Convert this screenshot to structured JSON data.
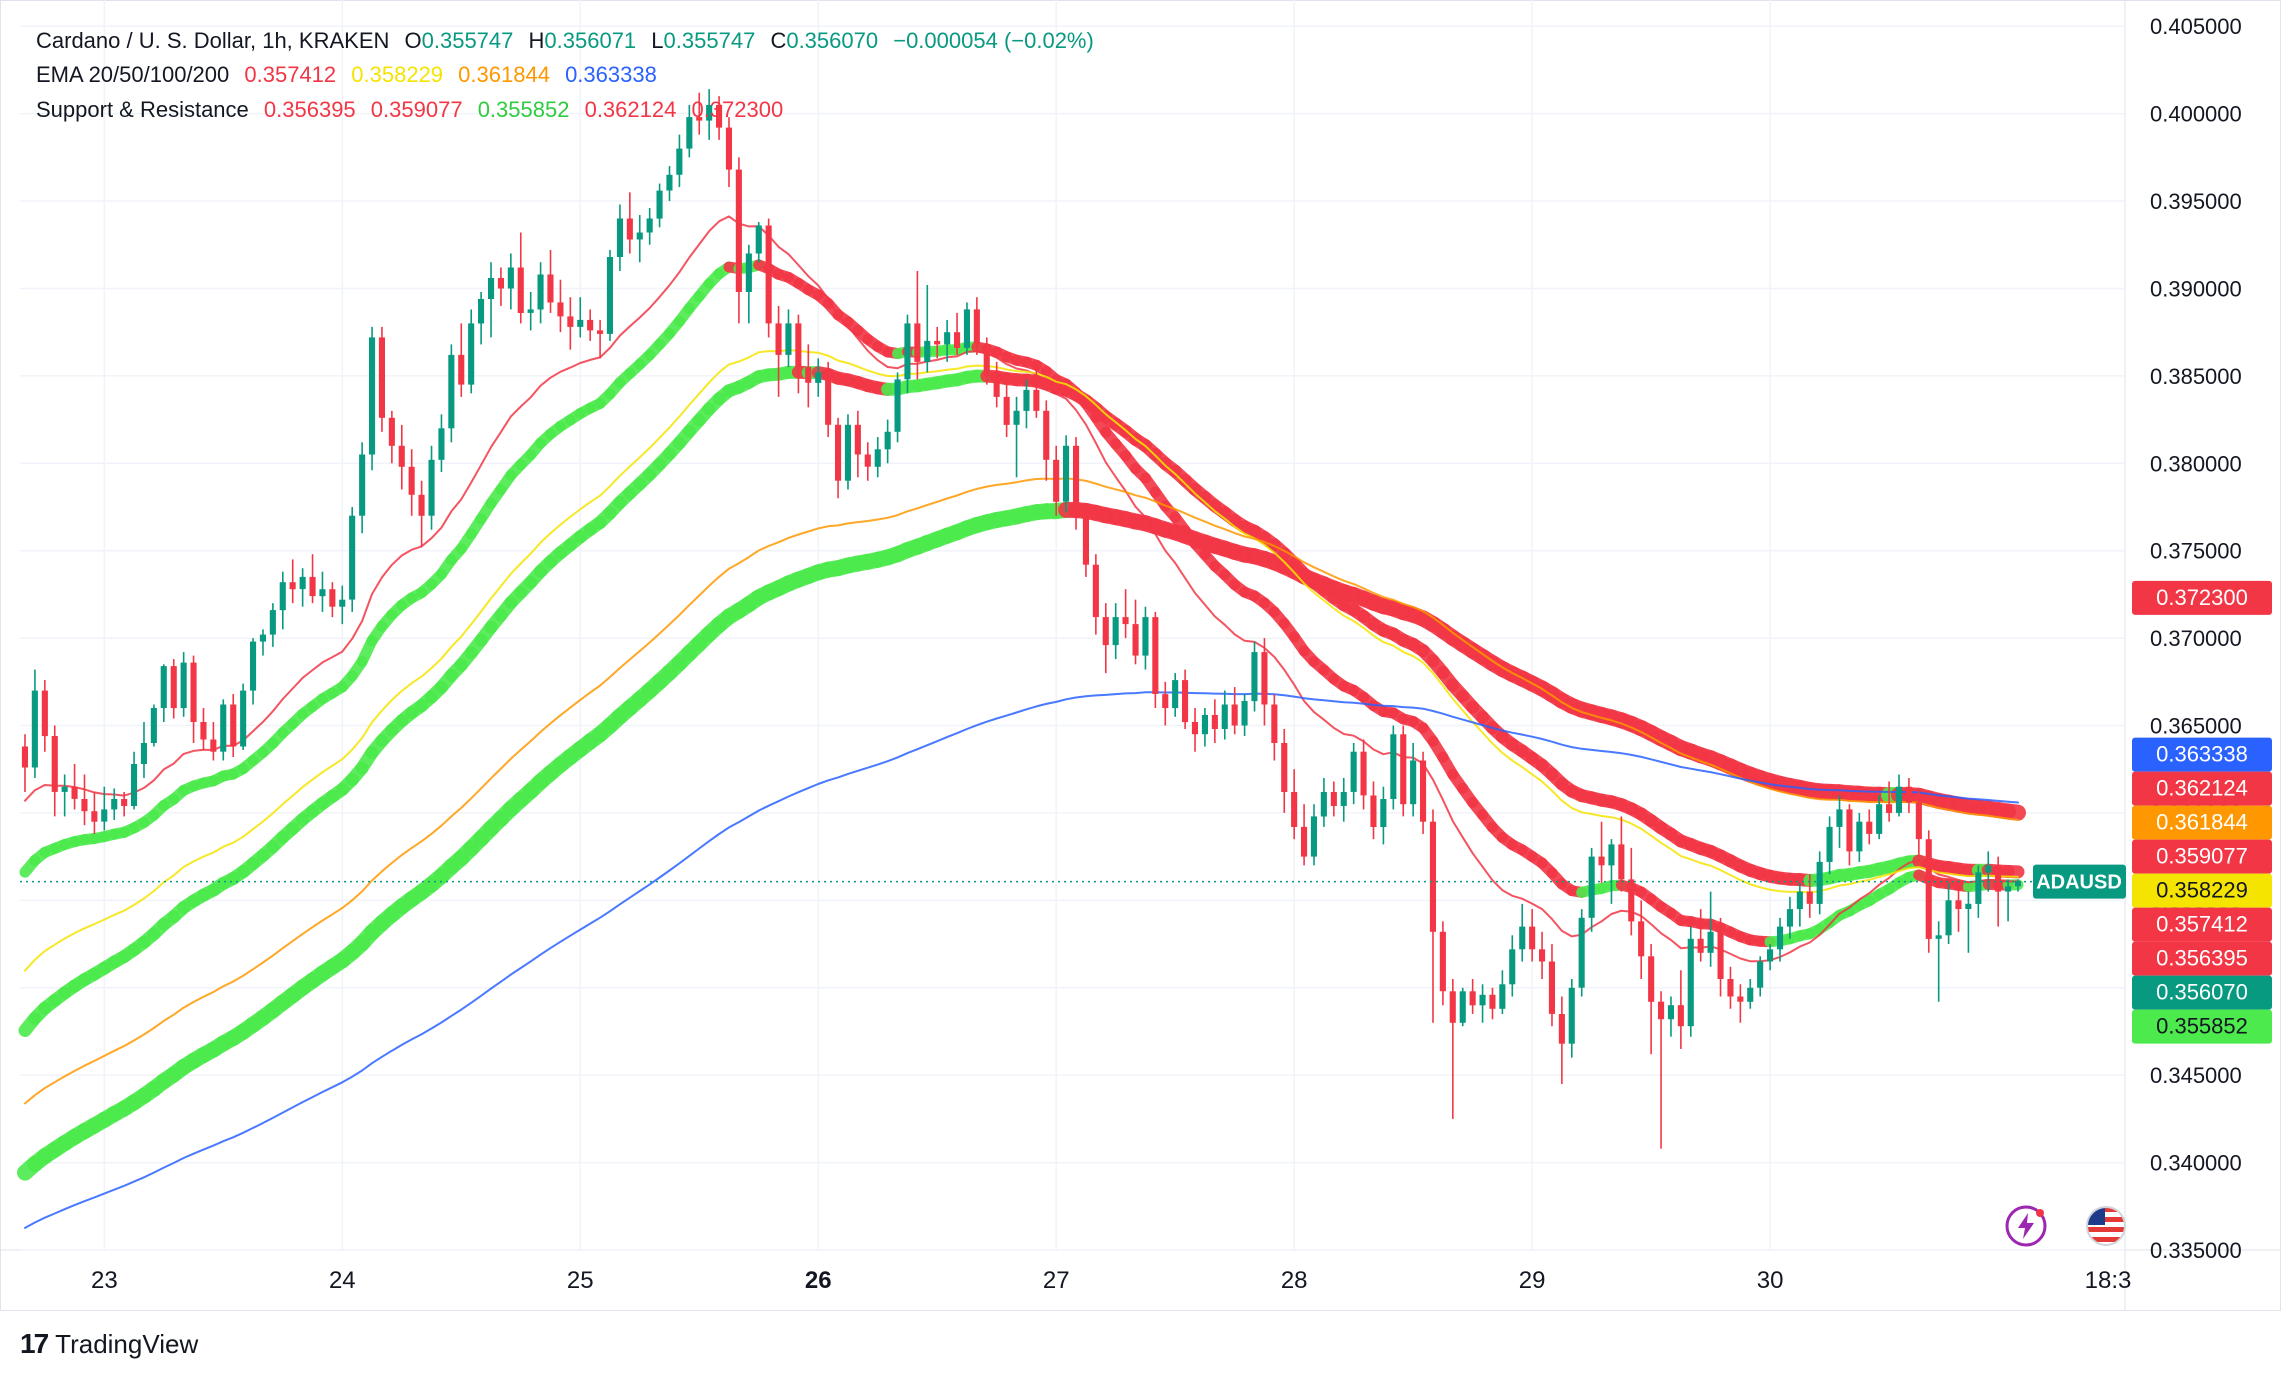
{
  "header": {
    "symbol": "Cardano / U. S. Dollar, 1h, KRAKEN",
    "o_label": "O",
    "o_value": "0.355747",
    "h_label": "H",
    "h_value": "0.356071",
    "l_label": "L",
    "l_value": "0.355747",
    "c_label": "C",
    "c_value": "0.356070",
    "change": "−0.000054 (−0.02%)",
    "ohlc_color": "#089981"
  },
  "ema_legend": {
    "label": "EMA 20/50/100/200",
    "values": [
      {
        "text": "0.357412",
        "color": "#f23645"
      },
      {
        "text": "0.358229",
        "color": "#f5e400"
      },
      {
        "text": "0.361844",
        "color": "#ff9800"
      },
      {
        "text": "0.363338",
        "color": "#2962ff"
      }
    ]
  },
  "sr_legend": {
    "label": "Support & Resistance",
    "values": [
      {
        "text": "0.356395",
        "color": "#f23645"
      },
      {
        "text": "0.359077",
        "color": "#f23645"
      },
      {
        "text": "0.355852",
        "color": "#2ecc40"
      },
      {
        "text": "0.362124",
        "color": "#f23645"
      },
      {
        "text": "0.372300",
        "color": "#f23645"
      }
    ]
  },
  "branding": {
    "name": "TradingView"
  },
  "chart_data": {
    "type": "candlestick",
    "x_ticks": [
      "23",
      "24",
      "25",
      "26",
      "27",
      "28",
      "29",
      "30",
      "18:3"
    ],
    "bold_tick": "26",
    "ylim": [
      0.335,
      0.4065
    ],
    "y_ticks": [
      "0.405000",
      "0.400000",
      "0.395000",
      "0.390000",
      "0.385000",
      "0.380000",
      "0.375000",
      "0.370000",
      "0.365000",
      "0.360000",
      "0.355000",
      "0.350000",
      "0.345000",
      "0.340000",
      "0.335000"
    ],
    "last_price": 0.35607,
    "colors": {
      "up": "#089981",
      "down": "#f23645",
      "ema20": "#f23645",
      "ema50": "#f5e400",
      "ema100": "#ff9800",
      "ema200": "#2962ff",
      "support": "#4cea4c",
      "resistance": "#f23645"
    },
    "price_labels": [
      {
        "text": "0.372300",
        "value": 0.3723,
        "bg": "#f23645",
        "fg": "#ffffff"
      },
      {
        "text": "0.363338",
        "value": 0.363338,
        "bg": "#2962ff",
        "fg": "#ffffff"
      },
      {
        "text": "0.362124",
        "value": 0.362124,
        "bg": "#f23645",
        "fg": "#ffffff"
      },
      {
        "text": "0.361844",
        "value": 0.361844,
        "bg": "#ff9800",
        "fg": "#ffffff"
      },
      {
        "text": "0.359077",
        "value": 0.359077,
        "bg": "#f23645",
        "fg": "#ffffff"
      },
      {
        "text": "0.358229",
        "value": 0.358229,
        "bg": "#f5e400",
        "fg": "#131722"
      },
      {
        "text": "0.357412",
        "value": 0.357412,
        "bg": "#f23645",
        "fg": "#ffffff"
      },
      {
        "text": "0.356395",
        "value": 0.356395,
        "bg": "#f23645",
        "fg": "#ffffff"
      },
      {
        "text": "ADAUSD",
        "value": 0.35607,
        "bg": "#089981",
        "fg": "#ffffff",
        "symbol": true
      },
      {
        "text": "0.356070",
        "value": 0.35607,
        "bg": "#089981",
        "fg": "#ffffff"
      },
      {
        "text": "0.355852",
        "value": 0.355852,
        "bg": "#4cea4c",
        "fg": "#131722"
      }
    ],
    "candles": [
      [
        0.3638,
        0.3645,
        0.3612,
        0.3626
      ],
      [
        0.3626,
        0.3682,
        0.362,
        0.367
      ],
      [
        0.367,
        0.3676,
        0.3635,
        0.3644
      ],
      [
        0.3644,
        0.365,
        0.3598,
        0.3612
      ],
      [
        0.3612,
        0.3622,
        0.3598,
        0.3615
      ],
      [
        0.3615,
        0.3628,
        0.3602,
        0.3608
      ],
      [
        0.3608,
        0.3622,
        0.3593,
        0.3601
      ],
      [
        0.3601,
        0.3612,
        0.3588,
        0.3595
      ],
      [
        0.3595,
        0.3615,
        0.359,
        0.3602
      ],
      [
        0.3602,
        0.3614,
        0.3596,
        0.3608
      ],
      [
        0.3608,
        0.3612,
        0.3598,
        0.3604
      ],
      [
        0.3604,
        0.3635,
        0.3602,
        0.3628
      ],
      [
        0.3628,
        0.3652,
        0.362,
        0.364
      ],
      [
        0.364,
        0.3662,
        0.3638,
        0.366
      ],
      [
        0.366,
        0.3685,
        0.3652,
        0.3684
      ],
      [
        0.3684,
        0.3688,
        0.3654,
        0.366
      ],
      [
        0.366,
        0.3692,
        0.3655,
        0.3686
      ],
      [
        0.3686,
        0.369,
        0.364,
        0.3652
      ],
      [
        0.3652,
        0.366,
        0.3636,
        0.3642
      ],
      [
        0.3642,
        0.3652,
        0.363,
        0.3635
      ],
      [
        0.3635,
        0.3665,
        0.363,
        0.3662
      ],
      [
        0.3662,
        0.3668,
        0.3632,
        0.3638
      ],
      [
        0.3638,
        0.3674,
        0.3636,
        0.367
      ],
      [
        0.367,
        0.37,
        0.3662,
        0.3698
      ],
      [
        0.3698,
        0.3705,
        0.369,
        0.3702
      ],
      [
        0.3702,
        0.372,
        0.3695,
        0.3716
      ],
      [
        0.3716,
        0.3738,
        0.3705,
        0.3732
      ],
      [
        0.3732,
        0.3745,
        0.372,
        0.3728
      ],
      [
        0.3728,
        0.374,
        0.3718,
        0.3735
      ],
      [
        0.3735,
        0.3748,
        0.372,
        0.3724
      ],
      [
        0.3724,
        0.3738,
        0.3715,
        0.3728
      ],
      [
        0.3728,
        0.3732,
        0.3712,
        0.3718
      ],
      [
        0.3718,
        0.373,
        0.3708,
        0.3722
      ],
      [
        0.3722,
        0.3775,
        0.3715,
        0.377
      ],
      [
        0.377,
        0.3812,
        0.376,
        0.3805
      ],
      [
        0.3805,
        0.3878,
        0.3796,
        0.3872
      ],
      [
        0.3872,
        0.3878,
        0.3818,
        0.3826
      ],
      [
        0.3826,
        0.383,
        0.38,
        0.381
      ],
      [
        0.381,
        0.3822,
        0.3785,
        0.3798
      ],
      [
        0.3798,
        0.3808,
        0.377,
        0.3782
      ],
      [
        0.3782,
        0.379,
        0.3752,
        0.377
      ],
      [
        0.377,
        0.381,
        0.3762,
        0.3802
      ],
      [
        0.3802,
        0.3828,
        0.3795,
        0.382
      ],
      [
        0.382,
        0.3868,
        0.3812,
        0.3862
      ],
      [
        0.3862,
        0.388,
        0.3838,
        0.3845
      ],
      [
        0.3845,
        0.3888,
        0.384,
        0.388
      ],
      [
        0.388,
        0.3898,
        0.3868,
        0.3894
      ],
      [
        0.3894,
        0.3915,
        0.3872,
        0.3906
      ],
      [
        0.3906,
        0.3912,
        0.389,
        0.39
      ],
      [
        0.39,
        0.392,
        0.3888,
        0.3912
      ],
      [
        0.3912,
        0.3932,
        0.388,
        0.3886
      ],
      [
        0.3886,
        0.3898,
        0.3876,
        0.3888
      ],
      [
        0.3888,
        0.3915,
        0.388,
        0.3908
      ],
      [
        0.3908,
        0.3922,
        0.3886,
        0.3892
      ],
      [
        0.3892,
        0.3905,
        0.3875,
        0.3884
      ],
      [
        0.3884,
        0.3895,
        0.3865,
        0.3878
      ],
      [
        0.3878,
        0.3895,
        0.3872,
        0.3882
      ],
      [
        0.3882,
        0.3888,
        0.387,
        0.3876
      ],
      [
        0.3876,
        0.3882,
        0.386,
        0.3874
      ],
      [
        0.3874,
        0.3922,
        0.387,
        0.3918
      ],
      [
        0.3918,
        0.3948,
        0.391,
        0.394
      ],
      [
        0.394,
        0.3955,
        0.392,
        0.3928
      ],
      [
        0.3928,
        0.3942,
        0.3915,
        0.3932
      ],
      [
        0.3932,
        0.3946,
        0.3925,
        0.394
      ],
      [
        0.394,
        0.396,
        0.3935,
        0.3956
      ],
      [
        0.3956,
        0.397,
        0.395,
        0.3965
      ],
      [
        0.3965,
        0.3988,
        0.3958,
        0.398
      ],
      [
        0.398,
        0.4005,
        0.3975,
        0.3998
      ],
      [
        0.3998,
        0.4012,
        0.3988,
        0.3996
      ],
      [
        0.3996,
        0.4014,
        0.3985,
        0.4005
      ],
      [
        0.4005,
        0.401,
        0.3985,
        0.3992
      ],
      [
        0.3992,
        0.3998,
        0.3958,
        0.3968
      ],
      [
        0.3968,
        0.3975,
        0.388,
        0.3898
      ],
      [
        0.3898,
        0.3925,
        0.388,
        0.392
      ],
      [
        0.392,
        0.3938,
        0.3915,
        0.3936
      ],
      [
        0.3936,
        0.394,
        0.3872,
        0.388
      ],
      [
        0.388,
        0.389,
        0.3838,
        0.3862
      ],
      [
        0.3862,
        0.3888,
        0.3855,
        0.388
      ],
      [
        0.388,
        0.3885,
        0.384,
        0.3855
      ],
      [
        0.3855,
        0.3868,
        0.3832,
        0.3846
      ],
      [
        0.3846,
        0.386,
        0.3838,
        0.3852
      ],
      [
        0.3852,
        0.3858,
        0.3815,
        0.3822
      ],
      [
        0.3822,
        0.3826,
        0.378,
        0.379
      ],
      [
        0.379,
        0.3828,
        0.3785,
        0.3822
      ],
      [
        0.3822,
        0.383,
        0.3792,
        0.3805
      ],
      [
        0.3805,
        0.3812,
        0.379,
        0.3798
      ],
      [
        0.3798,
        0.3815,
        0.3792,
        0.3808
      ],
      [
        0.3808,
        0.3825,
        0.38,
        0.3818
      ],
      [
        0.3818,
        0.3852,
        0.3812,
        0.3848
      ],
      [
        0.3848,
        0.3885,
        0.384,
        0.388
      ],
      [
        0.388,
        0.391,
        0.3848,
        0.3858
      ],
      [
        0.3858,
        0.3902,
        0.3852,
        0.387
      ],
      [
        0.387,
        0.3878,
        0.386,
        0.3868
      ],
      [
        0.3868,
        0.3882,
        0.3858,
        0.3875
      ],
      [
        0.3875,
        0.3886,
        0.3862,
        0.3866
      ],
      [
        0.3866,
        0.3892,
        0.3862,
        0.3888
      ],
      [
        0.3888,
        0.3895,
        0.3862,
        0.3868
      ],
      [
        0.3868,
        0.3872,
        0.3845,
        0.385
      ],
      [
        0.385,
        0.3858,
        0.3832,
        0.3838
      ],
      [
        0.3838,
        0.3845,
        0.3815,
        0.3822
      ],
      [
        0.3822,
        0.3838,
        0.3792,
        0.383
      ],
      [
        0.383,
        0.3848,
        0.382,
        0.3842
      ],
      [
        0.3842,
        0.3855,
        0.3826,
        0.383
      ],
      [
        0.383,
        0.3836,
        0.379,
        0.3802
      ],
      [
        0.3802,
        0.381,
        0.377,
        0.3778
      ],
      [
        0.3778,
        0.3816,
        0.3772,
        0.381
      ],
      [
        0.381,
        0.3815,
        0.3762,
        0.377
      ],
      [
        0.377,
        0.3775,
        0.3735,
        0.3742
      ],
      [
        0.3742,
        0.3748,
        0.3702,
        0.3712
      ],
      [
        0.3712,
        0.372,
        0.368,
        0.3696
      ],
      [
        0.3696,
        0.372,
        0.3688,
        0.3712
      ],
      [
        0.3712,
        0.3728,
        0.37,
        0.3708
      ],
      [
        0.3708,
        0.3722,
        0.3685,
        0.369
      ],
      [
        0.369,
        0.3718,
        0.3682,
        0.3712
      ],
      [
        0.3712,
        0.3715,
        0.366,
        0.3668
      ],
      [
        0.3668,
        0.3675,
        0.365,
        0.366
      ],
      [
        0.366,
        0.368,
        0.3655,
        0.3676
      ],
      [
        0.3676,
        0.3682,
        0.3648,
        0.3652
      ],
      [
        0.3652,
        0.366,
        0.3635,
        0.3645
      ],
      [
        0.3645,
        0.366,
        0.3638,
        0.3656
      ],
      [
        0.3656,
        0.3665,
        0.364,
        0.3648
      ],
      [
        0.3648,
        0.367,
        0.3642,
        0.3662
      ],
      [
        0.3662,
        0.3672,
        0.3645,
        0.365
      ],
      [
        0.365,
        0.3668,
        0.3644,
        0.3664
      ],
      [
        0.3664,
        0.3698,
        0.3658,
        0.3692
      ],
      [
        0.3692,
        0.37,
        0.365,
        0.3662
      ],
      [
        0.3662,
        0.3668,
        0.363,
        0.364
      ],
      [
        0.364,
        0.3648,
        0.36,
        0.3612
      ],
      [
        0.3612,
        0.3625,
        0.3585,
        0.3592
      ],
      [
        0.3592,
        0.3605,
        0.357,
        0.3575
      ],
      [
        0.3575,
        0.3605,
        0.357,
        0.3598
      ],
      [
        0.3598,
        0.362,
        0.3592,
        0.3612
      ],
      [
        0.3612,
        0.3618,
        0.3598,
        0.3604
      ],
      [
        0.3604,
        0.362,
        0.3595,
        0.3612
      ],
      [
        0.3612,
        0.364,
        0.3605,
        0.3635
      ],
      [
        0.3635,
        0.3642,
        0.3602,
        0.361
      ],
      [
        0.361,
        0.3618,
        0.3585,
        0.3592
      ],
      [
        0.3592,
        0.3615,
        0.3582,
        0.3608
      ],
      [
        0.3608,
        0.365,
        0.3602,
        0.3645
      ],
      [
        0.3645,
        0.365,
        0.3598,
        0.3605
      ],
      [
        0.3605,
        0.364,
        0.3598,
        0.363
      ],
      [
        0.363,
        0.3635,
        0.3588,
        0.3595
      ],
      [
        0.3595,
        0.3602,
        0.348,
        0.3532
      ],
      [
        0.3532,
        0.3538,
        0.349,
        0.3498
      ],
      [
        0.3498,
        0.3505,
        0.3425,
        0.348
      ],
      [
        0.348,
        0.35,
        0.3478,
        0.3498
      ],
      [
        0.3498,
        0.3505,
        0.3485,
        0.349
      ],
      [
        0.349,
        0.3502,
        0.348,
        0.3496
      ],
      [
        0.3496,
        0.35,
        0.3482,
        0.3488
      ],
      [
        0.3488,
        0.351,
        0.3485,
        0.3502
      ],
      [
        0.3502,
        0.353,
        0.3495,
        0.3522
      ],
      [
        0.3522,
        0.3548,
        0.3515,
        0.3535
      ],
      [
        0.3535,
        0.3545,
        0.3515,
        0.3522
      ],
      [
        0.3522,
        0.3532,
        0.3505,
        0.3515
      ],
      [
        0.3515,
        0.3525,
        0.3478,
        0.3485
      ],
      [
        0.3485,
        0.3495,
        0.3445,
        0.3468
      ],
      [
        0.3468,
        0.3505,
        0.346,
        0.35
      ],
      [
        0.35,
        0.3545,
        0.3495,
        0.354
      ],
      [
        0.354,
        0.358,
        0.3532,
        0.3575
      ],
      [
        0.3575,
        0.3595,
        0.356,
        0.357
      ],
      [
        0.357,
        0.3585,
        0.3548,
        0.3582
      ],
      [
        0.3582,
        0.3598,
        0.3555,
        0.3562
      ],
      [
        0.3562,
        0.358,
        0.353,
        0.3538
      ],
      [
        0.3538,
        0.355,
        0.3505,
        0.3518
      ],
      [
        0.3518,
        0.3525,
        0.3462,
        0.3492
      ],
      [
        0.3492,
        0.3498,
        0.3408,
        0.3482
      ],
      [
        0.3482,
        0.3495,
        0.3472,
        0.349
      ],
      [
        0.349,
        0.351,
        0.3465,
        0.3478
      ],
      [
        0.3478,
        0.3535,
        0.3472,
        0.3528
      ],
      [
        0.3528,
        0.3545,
        0.3515,
        0.352
      ],
      [
        0.352,
        0.3555,
        0.3512,
        0.3532
      ],
      [
        0.3532,
        0.354,
        0.3495,
        0.3505
      ],
      [
        0.3505,
        0.3512,
        0.3488,
        0.3495
      ],
      [
        0.3495,
        0.3502,
        0.348,
        0.3492
      ],
      [
        0.3492,
        0.3505,
        0.3488,
        0.35
      ],
      [
        0.35,
        0.3518,
        0.3495,
        0.3515
      ],
      [
        0.3515,
        0.3525,
        0.351,
        0.3522
      ],
      [
        0.3522,
        0.354,
        0.3515,
        0.3535
      ],
      [
        0.3535,
        0.3552,
        0.3528,
        0.3545
      ],
      [
        0.3545,
        0.356,
        0.3535,
        0.3555
      ],
      [
        0.3555,
        0.3565,
        0.354,
        0.3548
      ],
      [
        0.3548,
        0.3578,
        0.3542,
        0.3572
      ],
      [
        0.3572,
        0.3598,
        0.3565,
        0.3592
      ],
      [
        0.3592,
        0.361,
        0.358,
        0.3602
      ],
      [
        0.3602,
        0.3605,
        0.357,
        0.3578
      ],
      [
        0.3578,
        0.36,
        0.3572,
        0.3595
      ],
      [
        0.3595,
        0.3602,
        0.3582,
        0.3588
      ],
      [
        0.3588,
        0.361,
        0.3585,
        0.3605
      ],
      [
        0.3605,
        0.3618,
        0.3595,
        0.36
      ],
      [
        0.36,
        0.3622,
        0.3598,
        0.3615
      ],
      [
        0.3615,
        0.362,
        0.36,
        0.3606
      ],
      [
        0.3606,
        0.3612,
        0.3575,
        0.3585
      ],
      [
        0.3585,
        0.359,
        0.352,
        0.3528
      ],
      [
        0.3528,
        0.3538,
        0.3492,
        0.353
      ],
      [
        0.353,
        0.356,
        0.3525,
        0.355
      ],
      [
        0.355,
        0.3562,
        0.3532,
        0.3545
      ],
      [
        0.3545,
        0.3555,
        0.352,
        0.3548
      ],
      [
        0.3548,
        0.357,
        0.354,
        0.3566
      ],
      [
        0.3566,
        0.3578,
        0.3555,
        0.357
      ],
      [
        0.357,
        0.3575,
        0.3535,
        0.3555
      ],
      [
        0.3555,
        0.3562,
        0.3538,
        0.3558
      ],
      [
        0.3558,
        0.3562,
        0.3555,
        0.3561
      ]
    ]
  }
}
